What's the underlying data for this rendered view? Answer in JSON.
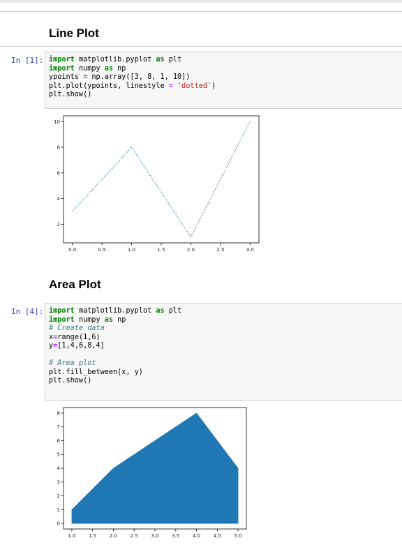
{
  "cells": [
    {
      "heading": "Line Plot",
      "prompt": "In [1]:",
      "code": [
        [
          [
            "kw",
            "import"
          ],
          [
            "t",
            " matplotlib.pyplot "
          ],
          [
            "kw",
            "as"
          ],
          [
            "t",
            " plt"
          ]
        ],
        [
          [
            "kw",
            "import"
          ],
          [
            "t",
            " numpy "
          ],
          [
            "kw",
            "as"
          ],
          [
            "t",
            " np"
          ]
        ],
        [
          [
            "t",
            "ypoints "
          ],
          [
            "op",
            "="
          ],
          [
            "t",
            " np.array([3, 8, 1, 10])"
          ]
        ],
        [
          [
            "t",
            "plt.plot(ypoints, linestyle "
          ],
          [
            "op",
            "="
          ],
          [
            "t",
            " "
          ],
          [
            "str",
            "'dotted'"
          ],
          [
            "t",
            ")"
          ]
        ],
        [
          [
            "t",
            "plt.show()"
          ]
        ]
      ]
    },
    {
      "heading": "Area Plot",
      "prompt": "In [4]:",
      "code": [
        [
          [
            "kw",
            "import"
          ],
          [
            "t",
            " matplotlib.pyplot "
          ],
          [
            "kw",
            "as"
          ],
          [
            "t",
            " plt"
          ]
        ],
        [
          [
            "kw",
            "import"
          ],
          [
            "t",
            " numpy "
          ],
          [
            "kw",
            "as"
          ],
          [
            "t",
            " np"
          ]
        ],
        [
          [
            "cm",
            "# Create data"
          ]
        ],
        [
          [
            "t",
            "x"
          ],
          [
            "op",
            "="
          ],
          [
            "t",
            "range(1,6)"
          ]
        ],
        [
          [
            "t",
            "y"
          ],
          [
            "op",
            "="
          ],
          [
            "t",
            "[1,4,6,8,4]"
          ]
        ],
        [
          [
            "t",
            ""
          ]
        ],
        [
          [
            "cm",
            "# Area plot"
          ]
        ],
        [
          [
            "t",
            "plt.fill_between(x, y)"
          ]
        ],
        [
          [
            "t",
            "plt.show()"
          ]
        ]
      ]
    }
  ],
  "chart_data": [
    {
      "type": "line",
      "x": [
        0,
        1,
        2,
        3
      ],
      "y": [
        3,
        8,
        1,
        10
      ],
      "linestyle": "dotted",
      "color": "#1f77b4",
      "xticks": [
        "0.0",
        "0.5",
        "1.0",
        "1.5",
        "2.0",
        "2.5",
        "3.0"
      ],
      "yticks": [
        "2",
        "4",
        "6",
        "8",
        "10"
      ],
      "xlim": [
        -0.15,
        3.15
      ],
      "ylim": [
        0.55,
        10.45
      ],
      "grid": false
    },
    {
      "type": "area",
      "x": [
        1,
        2,
        3,
        4,
        5
      ],
      "y": [
        1,
        4,
        6,
        8,
        4
      ],
      "color": "#1f77b4",
      "xticks": [
        "1.0",
        "1.5",
        "2.0",
        "2.5",
        "3.0",
        "3.5",
        "4.0",
        "4.5",
        "5.0"
      ],
      "yticks": [
        "0",
        "1",
        "2",
        "3",
        "4",
        "5",
        "6",
        "7",
        "8"
      ],
      "xlim": [
        0.8,
        5.2
      ],
      "ylim": [
        -0.4,
        8.4
      ],
      "grid": false
    }
  ]
}
